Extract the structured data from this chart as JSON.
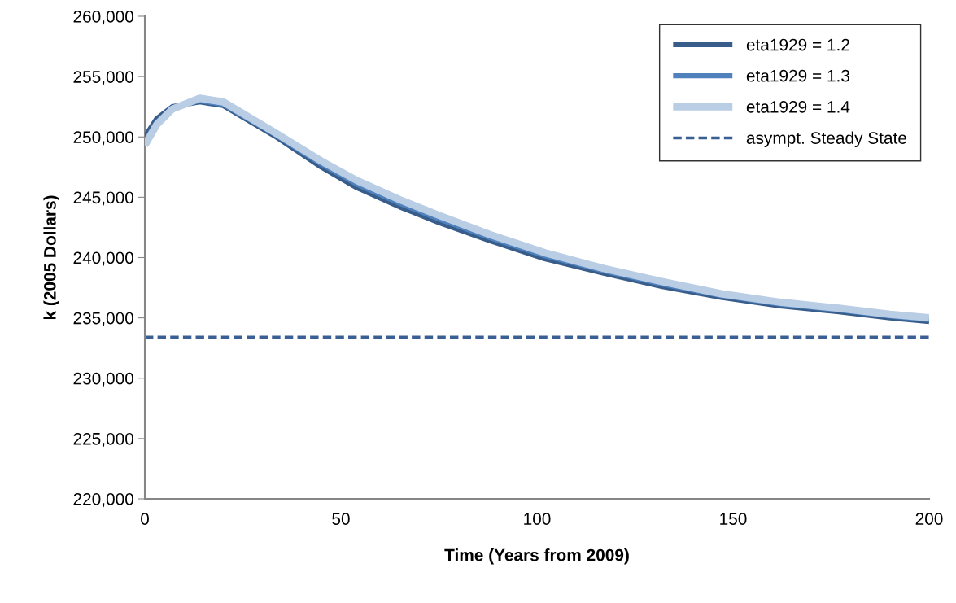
{
  "chart_data": {
    "type": "line",
    "xlabel": "Time (Years from 2009)",
    "ylabel": "k (2005 Dollars)",
    "x": [
      0,
      3,
      7,
      14,
      20,
      33,
      45,
      54,
      65,
      75,
      88,
      102,
      117,
      132,
      147,
      162,
      177,
      190,
      200
    ],
    "series": [
      {
        "name": "eta1929 = 1.2",
        "color": "#385d8a",
        "values": [
          250000,
          251500,
          252500,
          252900,
          252600,
          250100,
          247500,
          245800,
          244200,
          242900,
          241400,
          239900,
          238700,
          237600,
          236700,
          236000,
          235500,
          235000,
          234700
        ]
      },
      {
        "name": "eta1929 = 1.3",
        "color": "#4f81bd",
        "values": [
          249600,
          251200,
          252400,
          253000,
          252700,
          250250,
          247750,
          246100,
          244500,
          243200,
          241650,
          240150,
          238900,
          237800,
          236850,
          236150,
          235650,
          235150,
          234850
        ]
      },
      {
        "name": "eta1929 = 1.4",
        "color": "#b9cde5",
        "values": [
          249300,
          251000,
          252300,
          253200,
          252900,
          250400,
          248000,
          246400,
          244800,
          243500,
          241900,
          240400,
          239100,
          238000,
          237000,
          236300,
          235800,
          235300,
          235000
        ]
      }
    ],
    "ref_lines": [
      {
        "axis": "y",
        "value": 233400,
        "label": "asympt. Steady State",
        "color": "#3a5f94",
        "line_style": "dashed"
      }
    ],
    "xlim": [
      0,
      200
    ],
    "xticks": [
      0,
      50,
      100,
      150,
      200
    ],
    "ylim": [
      220000,
      260000
    ],
    "yticks": [
      {
        "value": 220000,
        "label": "220,000"
      },
      {
        "value": 225000,
        "label": "225,000"
      },
      {
        "value": 230000,
        "label": "230,000"
      },
      {
        "value": 235000,
        "label": "235,000"
      },
      {
        "value": 240000,
        "label": "240,000"
      },
      {
        "value": 245000,
        "label": "245,000"
      },
      {
        "value": 250000,
        "label": "250,000"
      },
      {
        "value": 255000,
        "label": "255,000"
      },
      {
        "value": 260000,
        "label": "260,000"
      }
    ],
    "legend": "top right",
    "grid": false,
    "marker": "none",
    "line_style": "solid"
  }
}
